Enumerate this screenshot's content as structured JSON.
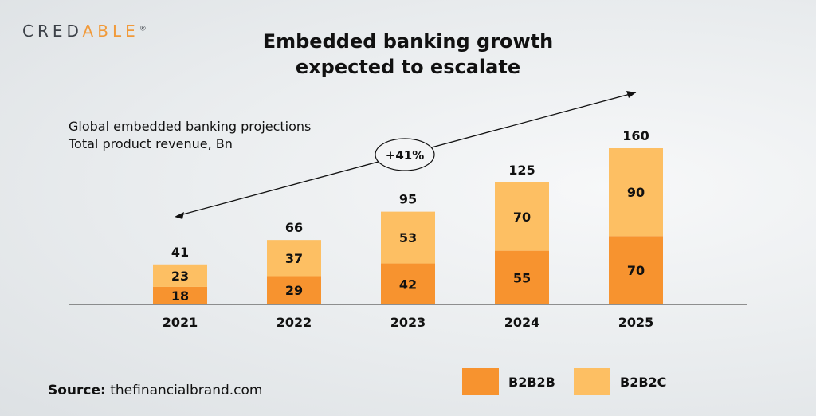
{
  "logo": {
    "text_left": "CRED",
    "text_accent": "ABLE",
    "mark": "®"
  },
  "title_line1": "Embedded banking growth",
  "title_line2": "expected to escalate",
  "subtitle_line1": "Global embedded banking projections",
  "subtitle_line2": "Total product revenue, Bn",
  "source_label": "Source:",
  "source_value": "thefinancialbrand.com",
  "chart_data": {
    "type": "bar",
    "stacked": true,
    "title": "Embedded banking growth expected to escalate",
    "xlabel": "",
    "ylabel": "Total product revenue, Bn",
    "categories": [
      "2021",
      "2022",
      "2023",
      "2024",
      "2025"
    ],
    "series": [
      {
        "name": "B2B2B",
        "color": "#F7932F",
        "values": [
          18,
          29,
          42,
          55,
          70
        ]
      },
      {
        "name": "B2B2C",
        "color": "#FDBF63",
        "values": [
          23,
          37,
          53,
          70,
          90
        ]
      }
    ],
    "totals": [
      41,
      66,
      95,
      125,
      160
    ],
    "annotation": "+41%",
    "ylim": [
      0,
      160
    ],
    "legend": "bottom-right"
  }
}
